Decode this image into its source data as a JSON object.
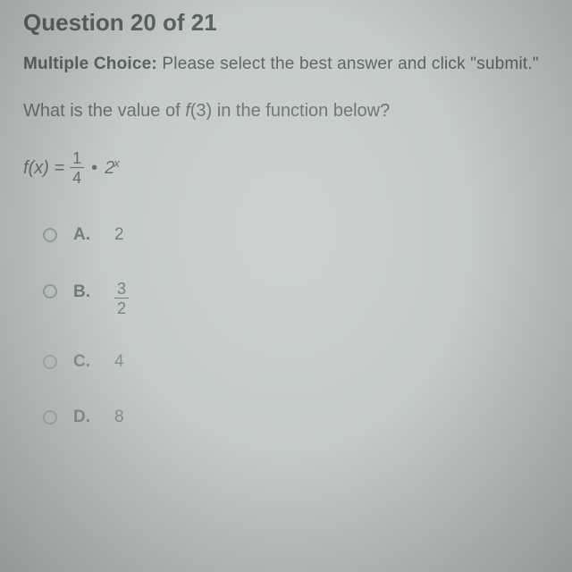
{
  "header": {
    "question_number": "Question 20 of 21"
  },
  "instruction": {
    "prefix": "Multiple Choice:",
    "text": " Please select the best answer and click \"submit.\""
  },
  "question": {
    "prompt_before": "What is the value of ",
    "fn": "f",
    "arg": "(3)",
    "prompt_after": " in the function below?"
  },
  "formula": {
    "lhs_fn": "f",
    "lhs_arg": "(x) =",
    "frac_num": "1",
    "frac_den": "4",
    "dot": "•",
    "base": "2",
    "exp": "x"
  },
  "choices": [
    {
      "letter": "A.",
      "value": "2",
      "is_fraction": false
    },
    {
      "letter": "B.",
      "num": "3",
      "den": "2",
      "is_fraction": true
    },
    {
      "letter": "C.",
      "value": "4",
      "is_fraction": false
    },
    {
      "letter": "D.",
      "value": "8",
      "is_fraction": false
    }
  ],
  "colors": {
    "background": "#c5cbc9",
    "heading": "#5c6462",
    "body": "#6a716e",
    "choice": "#758079",
    "faded": "#8a938e"
  }
}
